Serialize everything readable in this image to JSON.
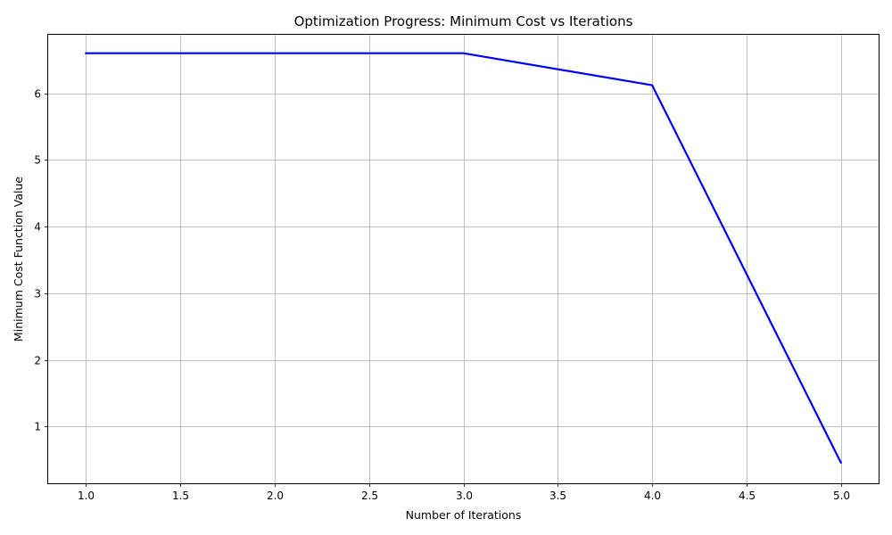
{
  "chart_data": {
    "type": "line",
    "title": "Optimization Progress: Minimum Cost vs Iterations",
    "xlabel": "Number of Iterations",
    "ylabel": "Minimum Cost Function Value",
    "x": [
      1.0,
      2.0,
      3.0,
      4.0,
      5.0
    ],
    "series": [
      {
        "values": [
          6.6,
          6.6,
          6.6,
          6.12,
          0.46
        ],
        "color": "#0000ff"
      }
    ],
    "xlim": [
      0.8,
      5.2
    ],
    "ylim": [
      0.15,
      6.89
    ],
    "xticks": [
      "1.0",
      "1.5",
      "2.0",
      "2.5",
      "3.0",
      "3.5",
      "4.0",
      "4.5",
      "5.0"
    ],
    "yticks": [
      "1",
      "2",
      "3",
      "4",
      "5",
      "6"
    ],
    "grid": true,
    "grid_color": "#b0b0b0"
  }
}
